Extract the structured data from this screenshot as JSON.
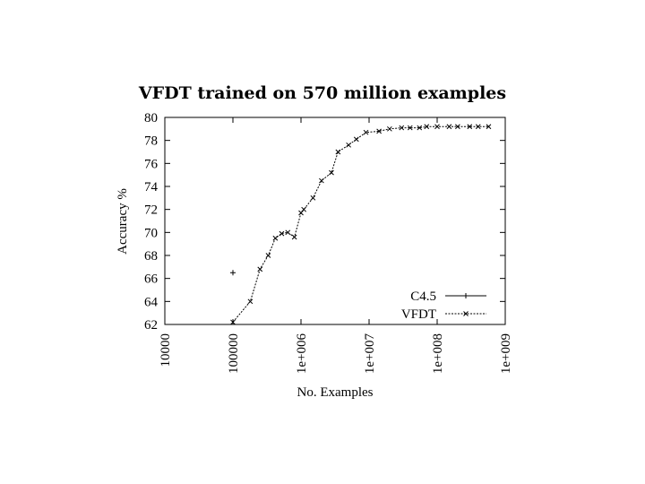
{
  "chart_data": {
    "type": "line",
    "title": "VFDT trained on 570 million examples",
    "xlabel": "No. Examples",
    "ylabel": "Accuracy %",
    "xscale": "log",
    "xlim": [
      10000,
      1000000000
    ],
    "ylim": [
      62,
      80
    ],
    "x_ticks": [
      "10000",
      "100000",
      "1e+006",
      "1e+007",
      "1e+008",
      "1e+009"
    ],
    "y_ticks": [
      "62",
      "64",
      "66",
      "68",
      "70",
      "72",
      "74",
      "76",
      "78",
      "80"
    ],
    "grid": false,
    "legend": "bottom-right",
    "series": [
      {
        "name": "C4.5",
        "style": "solid",
        "marker": "+",
        "points": [
          [
            100000,
            66.5
          ]
        ]
      },
      {
        "name": "VFDT",
        "style": "dotted",
        "marker": "x",
        "points": [
          [
            100000,
            62.2
          ],
          [
            180000,
            64.0
          ],
          [
            250000,
            66.8
          ],
          [
            330000,
            68.0
          ],
          [
            420000,
            69.5
          ],
          [
            520000,
            69.9
          ],
          [
            640000,
            70.0
          ],
          [
            800000,
            69.6
          ],
          [
            1000000,
            71.7
          ],
          [
            1100000,
            72.0
          ],
          [
            1500000,
            73.0
          ],
          [
            2000000,
            74.5
          ],
          [
            2800000,
            75.2
          ],
          [
            3500000,
            77.0
          ],
          [
            5000000,
            77.6
          ],
          [
            6500000,
            78.1
          ],
          [
            9000000,
            78.7
          ],
          [
            14000000,
            78.8
          ],
          [
            20000000,
            79.0
          ],
          [
            30000000,
            79.1
          ],
          [
            40000000,
            79.1
          ],
          [
            55000000,
            79.1
          ],
          [
            70000000,
            79.2
          ],
          [
            100000000,
            79.2
          ],
          [
            150000000,
            79.2
          ],
          [
            200000000,
            79.2
          ],
          [
            300000000,
            79.2
          ],
          [
            400000000,
            79.2
          ],
          [
            570000000,
            79.2
          ]
        ]
      }
    ]
  }
}
